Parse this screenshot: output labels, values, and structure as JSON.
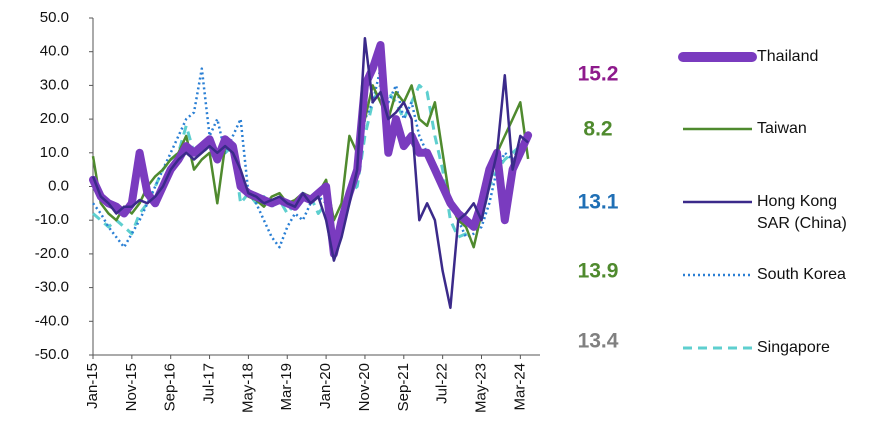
{
  "chart_data": {
    "type": "line",
    "categories": [
      "Jan-15",
      null,
      null,
      null,
      null,
      "Nov-15",
      null,
      null,
      null,
      null,
      "Sep-16",
      null,
      null,
      null,
      null,
      "Jul-17",
      null,
      null,
      null,
      null,
      "May-18",
      null,
      null,
      null,
      null,
      "Mar-19",
      null,
      null,
      null,
      null,
      "Jan-20",
      null,
      null,
      null,
      null,
      "Nov-20",
      null,
      null,
      null,
      null,
      "Sep-21",
      null,
      null,
      null,
      null,
      "Jul-22",
      null,
      null,
      null,
      null,
      "May-23",
      null,
      null,
      null,
      null,
      "Mar-24",
      null
    ],
    "series": [
      {
        "name": "Thailand",
        "color": "#7a3bbf",
        "line_style": "thick",
        "annotation": "15.2",
        "annotation_color": "#8e1a8c",
        "values": [
          2,
          -3,
          -5,
          -6,
          -8,
          -5,
          10,
          -2,
          -5,
          0,
          5,
          8,
          12,
          10,
          12,
          14,
          8,
          14,
          12,
          0,
          -2,
          -3,
          -4,
          -5,
          -4,
          -5,
          -6,
          -3,
          -4,
          -2,
          0,
          -20,
          -10,
          -2,
          5,
          30,
          35,
          42,
          10,
          20,
          12,
          15,
          10,
          10,
          5,
          0,
          -5,
          -8,
          -10,
          -12,
          -5,
          5,
          10,
          -10,
          5,
          10,
          15.2
        ]
      },
      {
        "name": "Taiwan",
        "color": "#4f8a2e",
        "line_style": "solid",
        "annotation": "8.2",
        "annotation_color": "#4f8a2e",
        "values": [
          9,
          -5,
          -8,
          -10,
          -6,
          -8,
          -5,
          0,
          3,
          5,
          8,
          10,
          15,
          5,
          8,
          10,
          -5,
          12,
          10,
          0,
          -3,
          -4,
          -6,
          -3,
          -2,
          -5,
          -4,
          -2,
          -3,
          -2,
          2,
          -10,
          -5,
          15,
          10,
          20,
          30,
          25,
          20,
          28,
          25,
          30,
          20,
          18,
          25,
          10,
          -5,
          -10,
          -12,
          -18,
          -8,
          5,
          10,
          15,
          20,
          25,
          8.2
        ]
      },
      {
        "name": "Hong Kong SAR (China)",
        "color": "#3b2a8a",
        "line_style": "solid",
        "annotation": "13.1",
        "annotation_color": "#1f6fb5",
        "values": [
          3,
          -3,
          -5,
          -8,
          -6,
          -6,
          -4,
          -5,
          -3,
          0,
          5,
          8,
          10,
          8,
          10,
          12,
          10,
          12,
          10,
          5,
          -2,
          -3,
          -5,
          -4,
          -3,
          -5,
          -6,
          -2,
          -5,
          -3,
          -10,
          -22,
          -15,
          -5,
          5,
          44,
          25,
          28,
          20,
          22,
          25,
          20,
          -10,
          -5,
          -10,
          -25,
          -36,
          -10,
          -8,
          -5,
          -10,
          0,
          10,
          33,
          5,
          15,
          13.1
        ]
      },
      {
        "name": "South Korea",
        "color": "#2a7fd4",
        "line_style": "dotted",
        "annotation": "13.9",
        "annotation_color": "#4f8a2e",
        "values": [
          -5,
          -8,
          -12,
          -15,
          -18,
          -14,
          -10,
          -5,
          0,
          5,
          10,
          15,
          20,
          22,
          35,
          15,
          20,
          10,
          15,
          20,
          -2,
          -5,
          -10,
          -15,
          -18,
          -12,
          -8,
          -10,
          -5,
          -3,
          -5,
          -20,
          -12,
          -5,
          5,
          20,
          25,
          35,
          25,
          30,
          20,
          25,
          15,
          10,
          5,
          0,
          -5,
          -10,
          -15,
          -14,
          -12,
          -5,
          5,
          10,
          8,
          12,
          13.9
        ]
      },
      {
        "name": "Singapore",
        "color": "#5ecfcf",
        "line_style": "dashed",
        "annotation": "13.4",
        "annotation_color": "#808080",
        "values": [
          -8,
          -10,
          -12,
          -10,
          -12,
          -14,
          -8,
          -5,
          0,
          5,
          8,
          10,
          18,
          10,
          12,
          10,
          8,
          10,
          12,
          -5,
          -2,
          -5,
          -3,
          -6,
          -4,
          -8,
          -5,
          -2,
          -3,
          -8,
          -5,
          -15,
          -10,
          -2,
          0,
          15,
          25,
          30,
          28,
          25,
          20,
          25,
          30,
          28,
          15,
          5,
          -10,
          -15,
          -14,
          -12,
          -10,
          0,
          5,
          8,
          10,
          12,
          13.4
        ]
      }
    ],
    "ylim": [
      -50,
      50
    ],
    "yticks": [
      {
        "value": -50,
        "label": "-50.0"
      },
      {
        "value": -40,
        "label": "-40.0"
      },
      {
        "value": -30,
        "label": "-30.0"
      },
      {
        "value": -20,
        "label": "-20.0"
      },
      {
        "value": -10,
        "label": "-10.0"
      },
      {
        "value": 0,
        "label": "0.0"
      },
      {
        "value": 10,
        "label": "10.0"
      },
      {
        "value": 20,
        "label": "20.0"
      },
      {
        "value": 30,
        "label": "30.0"
      },
      {
        "value": 40,
        "label": "40.0"
      },
      {
        "value": 50,
        "label": "50.0"
      }
    ],
    "grid": false
  }
}
